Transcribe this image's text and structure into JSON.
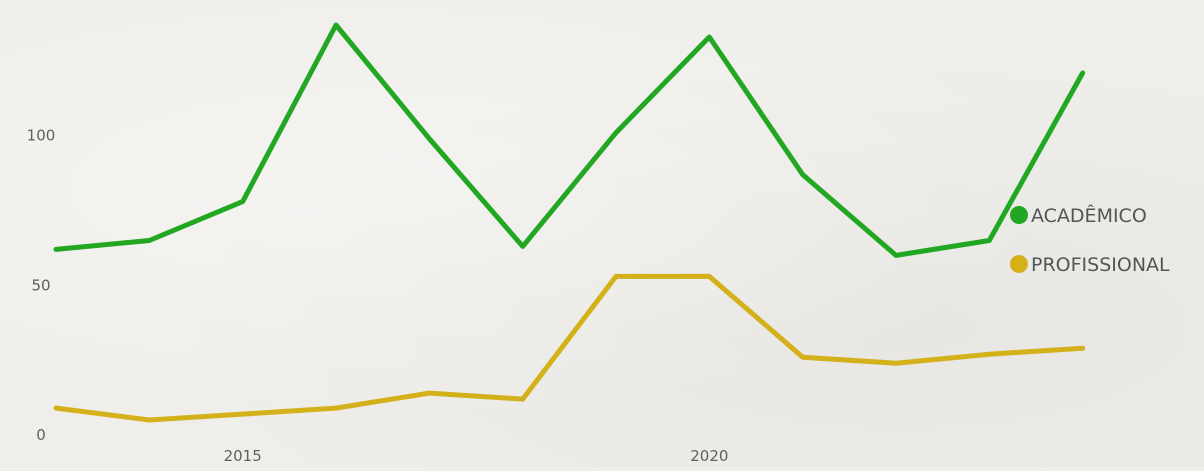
{
  "chart_data": {
    "type": "line",
    "title": "",
    "xlabel": "",
    "ylabel": "",
    "x": [
      2013,
      2014,
      2015,
      2016,
      2017,
      2018,
      2019,
      2020,
      2021,
      2022,
      2023,
      2024
    ],
    "xlim": [
      2012.4,
      2025.3
    ],
    "ylim": [
      0,
      140
    ],
    "xticks": [
      2015,
      2020
    ],
    "yticks": [
      0,
      50,
      100
    ],
    "x_tick_labels": [
      "2015",
      "2020"
    ],
    "y_tick_labels": [
      "0",
      "50",
      "100"
    ],
    "grid": false,
    "legend_position": "right",
    "series": [
      {
        "name": "ACADÊMICO",
        "color": "#22a722",
        "values": [
          62,
          65,
          78,
          137,
          99,
          63,
          101,
          133,
          87,
          60,
          65,
          121
        ]
      },
      {
        "name": "PROFISSIONAL",
        "color": "#d4b11b",
        "values": [
          9,
          5,
          7,
          9,
          14,
          12,
          53,
          53,
          26,
          24,
          27,
          29
        ]
      }
    ]
  }
}
